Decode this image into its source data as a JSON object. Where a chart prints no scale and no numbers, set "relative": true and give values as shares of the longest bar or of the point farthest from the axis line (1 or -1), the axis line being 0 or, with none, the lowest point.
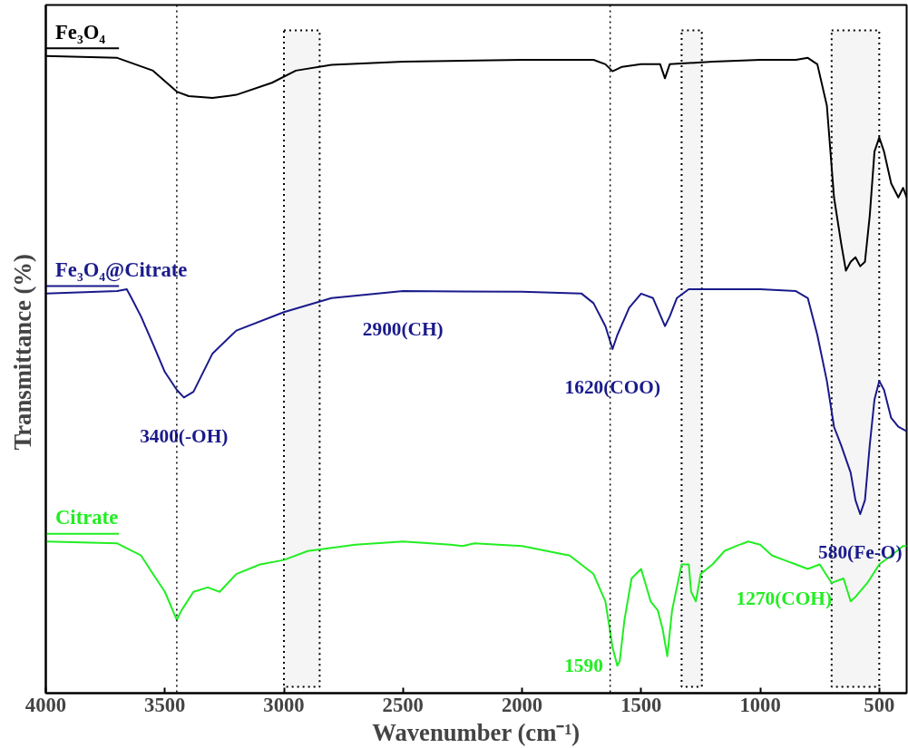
{
  "chart_data": {
    "type": "line",
    "relative": true,
    "xlabel": "Wavenumber (cm⁻¹)",
    "ylabel": "Transmittance  (%)",
    "xlim": [
      4000,
      385
    ],
    "xticks": [
      4000,
      3500,
      3000,
      2500,
      2000,
      1500,
      1000,
      500
    ],
    "grid": false,
    "line_style": "solid",
    "marker": "none",
    "series": [
      {
        "name": "Fe₃O₄",
        "color": "#000000",
        "x": [
          4000,
          3700,
          3550,
          3450,
          3400,
          3300,
          3200,
          3050,
          2950,
          2800,
          2500,
          2000,
          1700,
          1650,
          1620,
          1580,
          1500,
          1420,
          1400,
          1380,
          1200,
          1000,
          850,
          800,
          760,
          720,
          690,
          660,
          640,
          620,
          600,
          580,
          560,
          540,
          520,
          500,
          480,
          450,
          420,
          400,
          385
        ],
        "values": [
          1.0,
          0.997,
          0.977,
          0.944,
          0.937,
          0.934,
          0.939,
          0.958,
          0.977,
          0.986,
          0.991,
          0.994,
          0.994,
          0.987,
          0.976,
          0.983,
          0.987,
          0.987,
          0.965,
          0.987,
          0.991,
          0.994,
          0.994,
          0.997,
          0.987,
          0.922,
          0.778,
          0.706,
          0.663,
          0.677,
          0.684,
          0.67,
          0.677,
          0.749,
          0.85,
          0.872,
          0.85,
          0.8,
          0.778,
          0.793,
          0.778
        ]
      },
      {
        "name": "Fe₃O₄@Citrate",
        "color": "#1a1a8c",
        "x": [
          4000,
          3700,
          3660,
          3640,
          3600,
          3550,
          3500,
          3450,
          3420,
          3380,
          3300,
          3200,
          3000,
          2800,
          2500,
          2000,
          1750,
          1700,
          1650,
          1620,
          1600,
          1550,
          1500,
          1450,
          1400,
          1380,
          1350,
          1300,
          1000,
          850,
          800,
          760,
          720,
          690,
          660,
          620,
          600,
          580,
          560,
          540,
          520,
          500,
          480,
          450,
          420,
          385
        ],
        "values": [
          0.627,
          0.631,
          0.634,
          0.62,
          0.591,
          0.548,
          0.504,
          0.476,
          0.464,
          0.473,
          0.533,
          0.569,
          0.598,
          0.62,
          0.631,
          0.63,
          0.627,
          0.612,
          0.576,
          0.54,
          0.562,
          0.605,
          0.627,
          0.62,
          0.576,
          0.591,
          0.62,
          0.634,
          0.634,
          0.631,
          0.62,
          0.562,
          0.49,
          0.418,
          0.389,
          0.346,
          0.303,
          0.281,
          0.303,
          0.389,
          0.461,
          0.49,
          0.476,
          0.432,
          0.418,
          0.411
        ]
      },
      {
        "name": "Citrate",
        "color": "#22ee22",
        "x": [
          4000,
          3700,
          3600,
          3550,
          3500,
          3450,
          3430,
          3380,
          3320,
          3270,
          3200,
          3100,
          3000,
          2900,
          2700,
          2500,
          2300,
          2250,
          2200,
          2000,
          1800,
          1700,
          1650,
          1620,
          1600,
          1590,
          1570,
          1540,
          1500,
          1460,
          1430,
          1410,
          1390,
          1370,
          1330,
          1300,
          1290,
          1270,
          1250,
          1200,
          1150,
          1100,
          1050,
          1000,
          950,
          900,
          850,
          800,
          750,
          700,
          650,
          620,
          600,
          550,
          500,
          450,
          400,
          385
        ],
        "values": [
          0.238,
          0.235,
          0.216,
          0.187,
          0.159,
          0.115,
          0.13,
          0.159,
          0.166,
          0.159,
          0.187,
          0.202,
          0.209,
          0.223,
          0.233,
          0.238,
          0.233,
          0.231,
          0.235,
          0.231,
          0.216,
          0.187,
          0.144,
          0.072,
          0.043,
          0.05,
          0.115,
          0.18,
          0.195,
          0.144,
          0.13,
          0.101,
          0.058,
          0.13,
          0.202,
          0.202,
          0.159,
          0.144,
          0.187,
          0.202,
          0.223,
          0.231,
          0.238,
          0.233,
          0.216,
          0.209,
          0.202,
          0.195,
          0.202,
          0.173,
          0.18,
          0.144,
          0.151,
          0.173,
          0.202,
          0.216,
          0.231,
          0.231
        ]
      }
    ],
    "ref_lines": [
      {
        "axis": "x",
        "value": 3450,
        "color": "#000000",
        "line_style": "dotted"
      },
      {
        "axis": "x",
        "value": 1630,
        "color": "#000000",
        "line_style": "dotted"
      }
    ],
    "bands": [
      {
        "axis": "x",
        "from": 3000,
        "to": 2850,
        "color": "#000000"
      },
      {
        "axis": "x",
        "from": 1330,
        "to": 1245,
        "color": "#000000"
      },
      {
        "axis": "x",
        "from": 700,
        "to": 500,
        "color": "#000000"
      }
    ],
    "annotations": [
      {
        "text": "2900(CH)",
        "x": 2500,
        "y": 0.631
      },
      {
        "text": "1620(COO)",
        "x": 1620,
        "y": 0.54
      },
      {
        "text": "3400(-OH)",
        "x": 3420,
        "y": 0.464
      },
      {
        "text": "580(Fe-O)",
        "x": 580,
        "y": 0.281
      },
      {
        "text": "1590",
        "x": 1600,
        "y": 0.043
      },
      {
        "text": "1270(COH)",
        "x": 900,
        "y": 0.209
      }
    ]
  }
}
